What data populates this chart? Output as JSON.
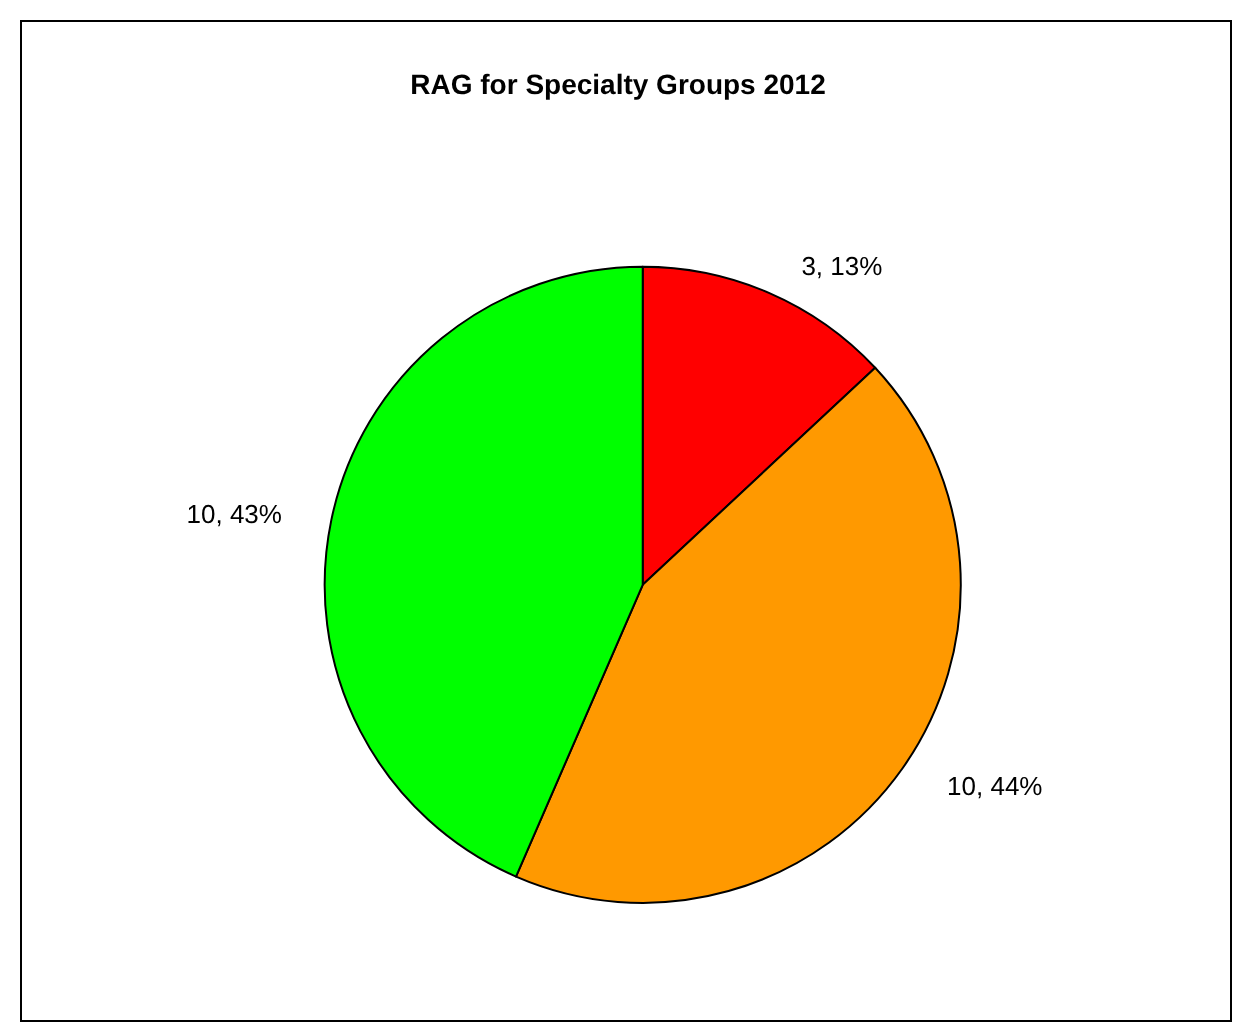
{
  "chart_data": {
    "type": "pie",
    "title": "RAG for Specialty Groups 2012",
    "categories": [
      null,
      null,
      null
    ],
    "values": [
      3,
      10,
      10
    ],
    "colors": [
      "#ff0000",
      "#ff9900",
      "#00ff00"
    ],
    "value_labels": [
      "3, 13%",
      "10, 44%",
      "10, 43%"
    ]
  }
}
